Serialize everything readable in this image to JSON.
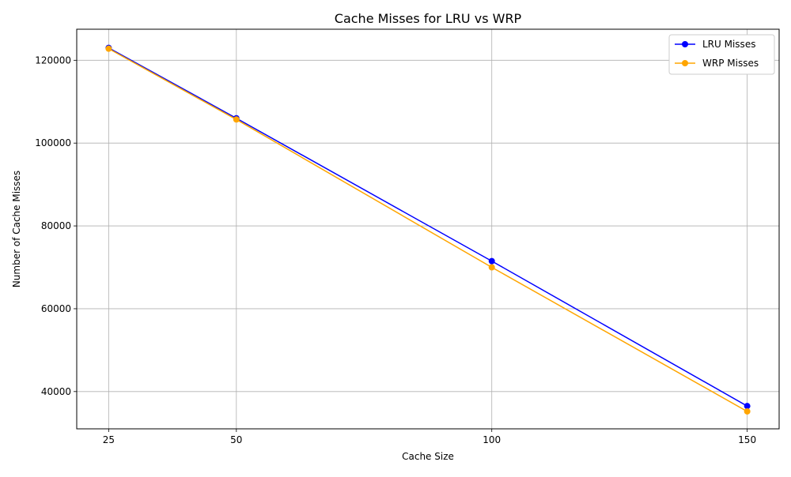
{
  "chart_data": {
    "type": "line",
    "title": "Cache Misses for LRU vs WRP",
    "xlabel": "Cache Size",
    "ylabel": "Number of Cache Misses",
    "x": [
      25,
      50,
      100,
      150
    ],
    "xticks": [
      25,
      50,
      100,
      150
    ],
    "xlim": [
      18.75,
      156.25
    ],
    "yticks": [
      40000,
      60000,
      80000,
      100000,
      120000
    ],
    "ylim": [
      31000,
      127500
    ],
    "grid": true,
    "legend_position": "top-right",
    "series": [
      {
        "name": "LRU Misses",
        "color": "#0000ff",
        "marker": "circle",
        "values": [
          123000,
          106000,
          71500,
          36500
        ]
      },
      {
        "name": "WRP Misses",
        "color": "#ffa500",
        "marker": "circle",
        "values": [
          122800,
          105700,
          70000,
          35200
        ]
      }
    ]
  }
}
